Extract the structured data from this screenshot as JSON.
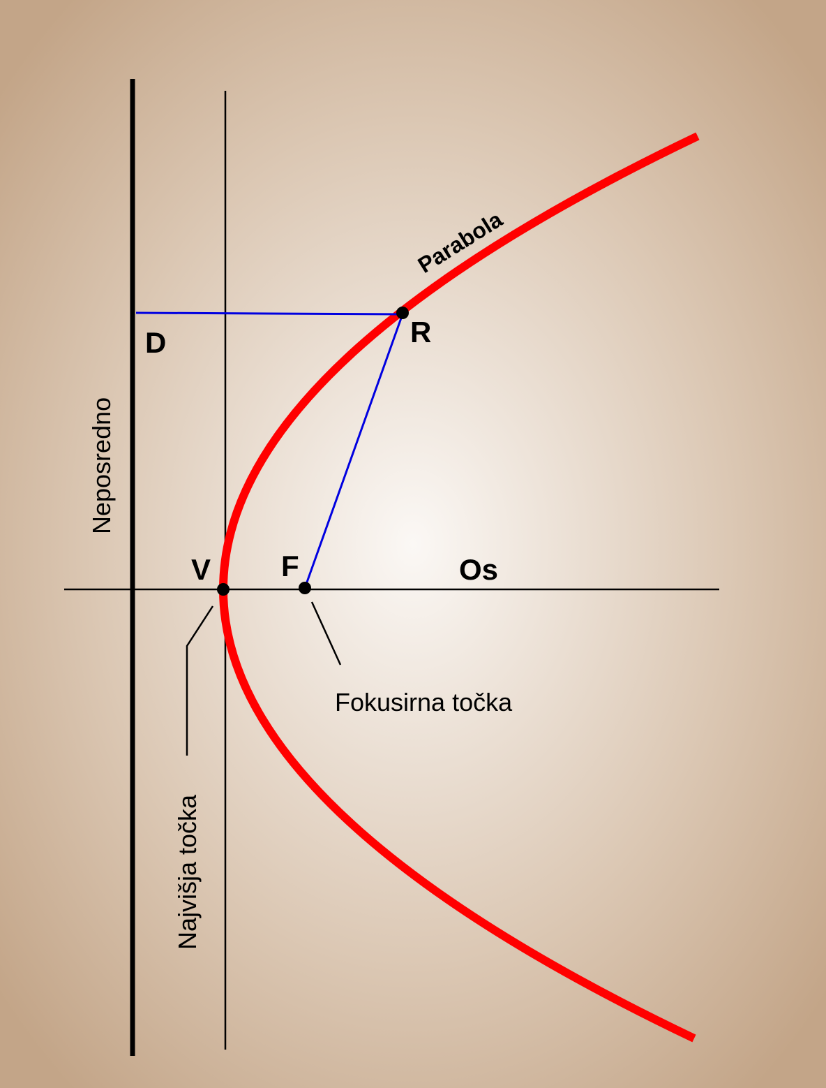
{
  "labels": {
    "directrix_point": "D",
    "parabola_point": "R",
    "vertex": "V",
    "focus": "F",
    "axis": "Os",
    "curve": "Parabola",
    "directrix": "Neposredno",
    "vertex_name": "Najvišja točka",
    "focus_name": "Fokusirna točka"
  }
}
